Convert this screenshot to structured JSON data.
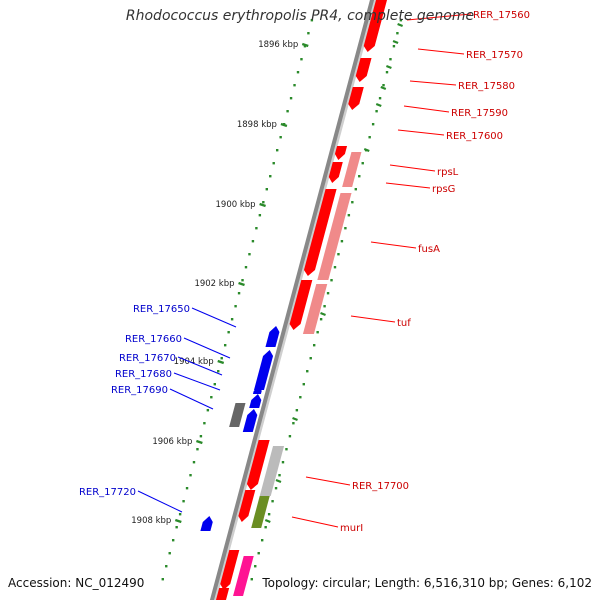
{
  "title": "Rhodococcus erythropolis PR4, complete genome",
  "accession": "Accession: NC_012490",
  "topology": "Topology: circular; Length: 6,516,310 bp; Genes: 6,102",
  "colors": {
    "background": "#ffffff",
    "backbone": "#888888",
    "tick": "#2a8a2a",
    "forward_gene": "#ff0000",
    "forward_label": "#cc0000",
    "reverse_gene": "#0000ee",
    "reverse_label": "#0000cc",
    "rna_product": "#f08a8a",
    "pseudo_gray": "#666666",
    "light_gray": "#bbbbbb",
    "olive": "#6b8e23",
    "magenta": "#ff1493"
  },
  "kbp_ticks": [
    "1896 kbp",
    "1898 kbp",
    "1900 kbp",
    "1902 kbp",
    "1904 kbp",
    "1906 kbp",
    "1908 kbp"
  ],
  "forward_labels": [
    "RER_17560",
    "RER_17570",
    "RER_17580",
    "RER_17590",
    "RER_17600",
    "rpsL",
    "rpsG",
    "fusA",
    "tuf",
    "RER_17700",
    "murI"
  ],
  "reverse_labels": [
    "RER_17650",
    "RER_17660",
    "RER_17670",
    "RER_17680",
    "RER_17690",
    "RER_17720"
  ]
}
